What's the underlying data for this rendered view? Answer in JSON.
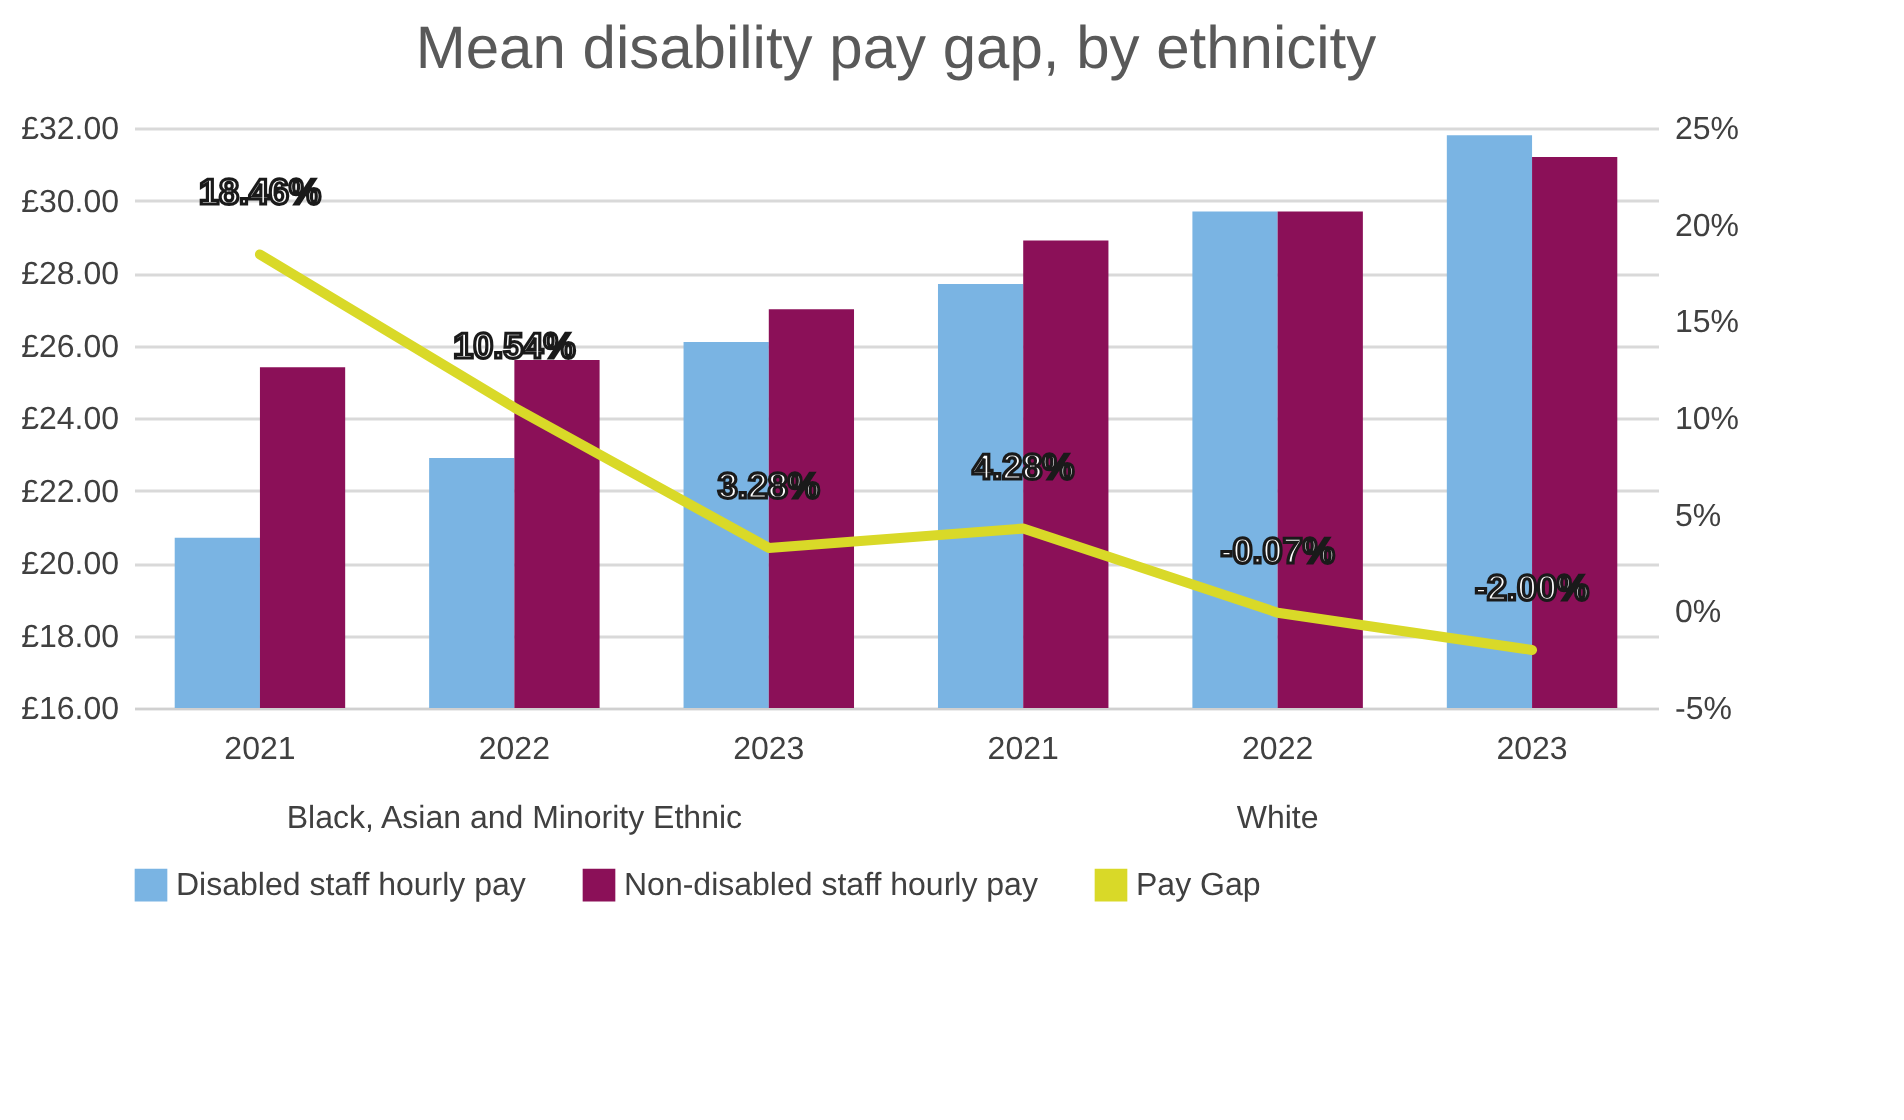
{
  "chart_data": {
    "type": "bar",
    "title": "Mean disability pay gap, by ethnicity",
    "categories": [
      "2021",
      "2022",
      "2023",
      "2021",
      "2022",
      "2023"
    ],
    "annotations": [
      "Black, Asian and Minority Ethnic",
      "White"
    ],
    "series": [
      {
        "name": "Disabled staff hourly pay",
        "color": "#7ab4e3",
        "values": [
          20.7,
          22.9,
          26.1,
          27.7,
          29.7,
          31.8
        ]
      },
      {
        "name": "Non-disabled staff hourly pay",
        "color": "#8b1058",
        "values": [
          25.4,
          25.6,
          27.0,
          28.9,
          29.7,
          31.2
        ]
      },
      {
        "name": "Pay Gap",
        "type": "line",
        "axis": "y2",
        "color": "#d9d928",
        "values": [
          18.46,
          10.54,
          3.28,
          4.28,
          -0.07,
          -2.0
        ],
        "value_labels": [
          "18.46%",
          "10.54%",
          "3.28%",
          "4.28%",
          "-0.07%",
          "-2.00%"
        ]
      }
    ],
    "ylim": [
      16,
      32
    ],
    "yticks": [
      {
        "value": 16,
        "label": "£16.00"
      },
      {
        "value": 18,
        "label": "£18.00"
      },
      {
        "value": 20,
        "label": "£20.00"
      },
      {
        "value": 22,
        "label": "£22.00"
      },
      {
        "value": 24,
        "label": "£24.00"
      },
      {
        "value": 26,
        "label": "£26.00"
      },
      {
        "value": 28,
        "label": "£28.00"
      },
      {
        "value": 30,
        "label": "£30.00"
      },
      {
        "value": 32,
        "label": "£32.00"
      }
    ],
    "y2lim": [
      -5,
      25
    ],
    "y2ticks": [
      {
        "value": -5,
        "label": "-5%"
      },
      {
        "value": 0,
        "label": "0%"
      },
      {
        "value": 5,
        "label": "5%"
      },
      {
        "value": 10,
        "label": "10%"
      },
      {
        "value": 15,
        "label": "15%"
      },
      {
        "value": 20,
        "label": "20%"
      },
      {
        "value": 25,
        "label": "25%"
      }
    ],
    "grid": "y",
    "legend": "bottom"
  }
}
